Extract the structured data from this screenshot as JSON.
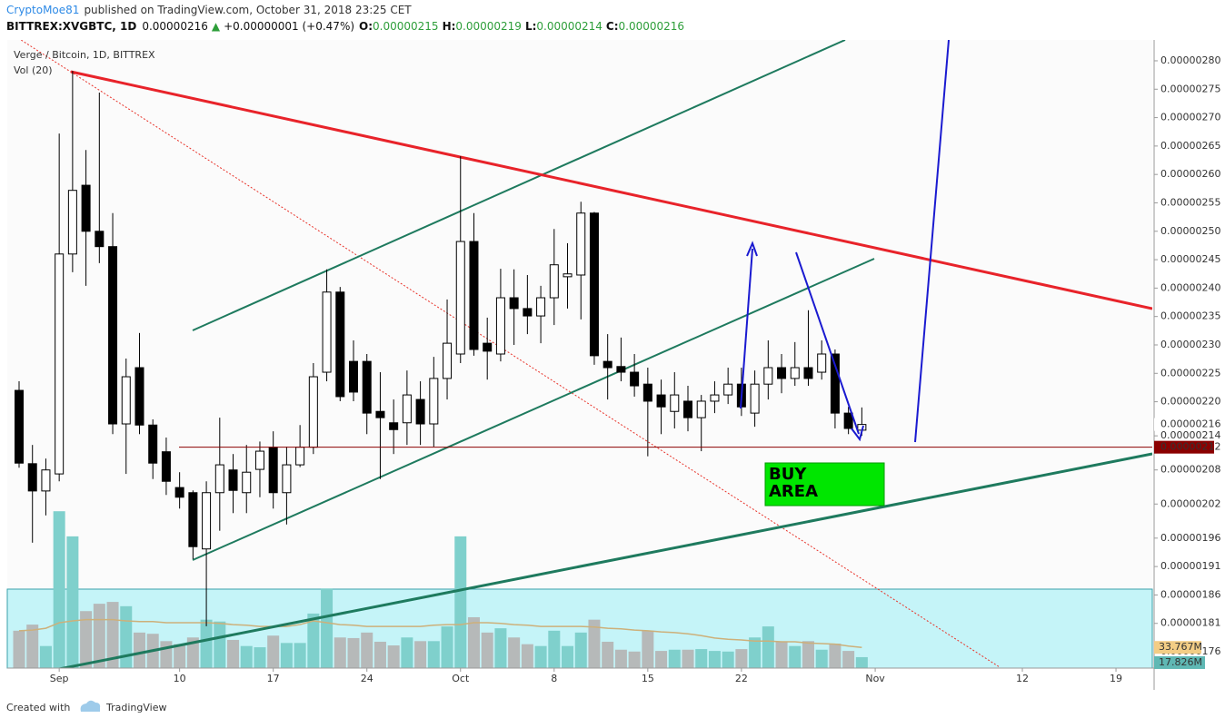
{
  "header": {
    "author": "CryptoMoe81",
    "published": "published on TradingView.com, October 31, 2018 23:25 CET",
    "symbol": "BITTREX:XVGBTC, 1D",
    "last": "0.00000216",
    "arrow": "▲",
    "change": "+0.00000001 (+0.47%)",
    "o_label": "O:",
    "o": "0.00000215",
    "h_label": "H:",
    "h": "0.00000219",
    "l_label": "L:",
    "l": "0.00000214",
    "c_label": "C:",
    "c": "0.00000216"
  },
  "footer": {
    "created": "Created with",
    "brand": "TradingView"
  },
  "chart_data": {
    "type": "candlestick",
    "title": "Verge / Bitcoin, 1D, BITTREX",
    "annotation": "BUY AREA",
    "x": [
      "2018-08-29",
      "2018-08-30",
      "2018-08-31",
      "2018-09-01",
      "2018-09-02",
      "2018-09-03",
      "2018-09-04",
      "2018-09-05",
      "2018-09-06",
      "2018-09-07",
      "2018-09-08",
      "2018-09-09",
      "2018-09-10",
      "2018-09-11",
      "2018-09-12",
      "2018-09-13",
      "2018-09-14",
      "2018-09-15",
      "2018-09-16",
      "2018-09-17",
      "2018-09-18",
      "2018-09-19",
      "2018-09-20",
      "2018-09-21",
      "2018-09-22",
      "2018-09-23",
      "2018-09-24",
      "2018-09-25",
      "2018-09-26",
      "2018-09-27",
      "2018-09-28",
      "2018-09-29",
      "2018-09-30",
      "2018-10-01",
      "2018-10-02",
      "2018-10-03",
      "2018-10-04",
      "2018-10-05",
      "2018-10-06",
      "2018-10-07",
      "2018-10-08",
      "2018-10-09",
      "2018-10-10",
      "2018-10-11",
      "2018-10-12",
      "2018-10-13",
      "2018-10-14",
      "2018-10-15",
      "2018-10-16",
      "2018-10-17",
      "2018-10-18",
      "2018-10-19",
      "2018-10-20",
      "2018-10-21",
      "2018-10-22",
      "2018-10-23",
      "2018-10-24",
      "2018-10-25",
      "2018-10-26",
      "2018-10-27",
      "2018-10-28",
      "2018-10-29",
      "2018-10-30",
      "2018-10-31"
    ],
    "open": [
      2.22e-06,
      2.091e-06,
      2.043e-06,
      2.073e-06,
      2.46e-06,
      2.581e-06,
      2.5e-06,
      2.473e-06,
      2.161e-06,
      2.26e-06,
      2.159e-06,
      2.112e-06,
      2.049e-06,
      2.04e-06,
      1.941e-06,
      2.04e-06,
      2.08e-06,
      2.04e-06,
      2.081e-06,
      2.12e-06,
      2.04e-06,
      2.089e-06,
      2.12e-06,
      2.252e-06,
      2.393e-06,
      2.271e-06,
      2.271e-06,
      2.183e-06,
      2.163e-06,
      2.163e-06,
      2.204e-06,
      2.161e-06,
      2.241e-06,
      2.284e-06,
      2.482e-06,
      2.303e-06,
      2.284e-06,
      2.383e-06,
      2.364e-06,
      2.351e-06,
      2.383e-06,
      2.42e-06,
      2.423e-06,
      2.532e-06,
      2.271e-06,
      2.262e-06,
      2.252e-06,
      2.231e-06,
      2.212e-06,
      2.183e-06,
      2.201e-06,
      2.172e-06,
      2.201e-06,
      2.212e-06,
      2.231e-06,
      2.18e-06,
      2.231e-06,
      2.26e-06,
      2.241e-06,
      2.26e-06,
      2.252e-06,
      2.284e-06,
      2.18e-06,
      2.15e-06
    ],
    "high": [
      2.236e-06,
      2.124e-06,
      2.1e-06,
      2.672e-06,
      2.782e-06,
      2.643e-06,
      2.744e-06,
      2.532e-06,
      2.276e-06,
      2.321e-06,
      2.169e-06,
      2.137e-06,
      2.076e-06,
      2.044e-06,
      2.06e-06,
      2.172e-06,
      2.108e-06,
      2.124e-06,
      2.13e-06,
      2.148e-06,
      2.121e-06,
      2.159e-06,
      2.268e-06,
      2.433e-06,
      2.402e-06,
      2.308e-06,
      2.284e-06,
      2.252e-06,
      2.204e-06,
      2.255e-06,
      2.236e-06,
      2.279e-06,
      2.38e-06,
      2.632e-06,
      2.532e-06,
      2.348e-06,
      2.434e-06,
      2.433e-06,
      2.423e-06,
      2.404e-06,
      2.504e-06,
      2.479e-06,
      2.552e-06,
      2.534e-06,
      2.319e-06,
      2.313e-06,
      2.284e-06,
      2.26e-06,
      2.239e-06,
      2.252e-06,
      2.228e-06,
      2.212e-06,
      2.236e-06,
      2.26e-06,
      2.26e-06,
      2.255e-06,
      2.308e-06,
      2.284e-06,
      2.305e-06,
      2.361e-06,
      2.308e-06,
      2.292e-06,
      2.191e-06,
      2.19e-06
    ],
    "low": [
      2.084e-06,
      1.952e-06,
      2e-06,
      2.06e-06,
      2.428e-06,
      2.404e-06,
      2.444e-06,
      2.143e-06,
      2.073e-06,
      2.143e-06,
      2.064e-06,
      2.036e-06,
      2.012e-06,
      1.923e-06,
      1.805e-06,
      1.973e-06,
      2.004e-06,
      2.004e-06,
      2.032e-06,
      2.012e-06,
      1.984e-06,
      2.085e-06,
      2.108e-06,
      2.236e-06,
      2.201e-06,
      2.201e-06,
      2.143e-06,
      2.064e-06,
      2.108e-06,
      2.124e-06,
      2.124e-06,
      2.121e-06,
      2.204e-06,
      2.268e-06,
      2.281e-06,
      2.239e-06,
      2.271e-06,
      2.3e-06,
      2.319e-06,
      2.303e-06,
      2.335e-06,
      2.364e-06,
      2.345e-06,
      2.265e-06,
      2.204e-06,
      2.236e-06,
      2.209e-06,
      2.104e-06,
      2.143e-06,
      2.153e-06,
      2.148e-06,
      2.113e-06,
      2.18e-06,
      2.196e-06,
      2.175e-06,
      2.156e-06,
      2.204e-06,
      2.215e-06,
      2.228e-06,
      2.228e-06,
      2.239e-06,
      2.153e-06,
      2.143e-06,
      2.14e-06
    ],
    "close": [
      2.092e-06,
      2.043e-06,
      2.08e-06,
      2.46e-06,
      2.572e-06,
      2.5e-06,
      2.473e-06,
      2.161e-06,
      2.244e-06,
      2.159e-06,
      2.092e-06,
      2.06e-06,
      2.032e-06,
      1.945e-06,
      2.04e-06,
      2.089e-06,
      2.044e-06,
      2.076e-06,
      2.113e-06,
      2.04e-06,
      2.089e-06,
      2.12e-06,
      2.244e-06,
      2.393e-06,
      2.209e-06,
      2.217e-06,
      2.18e-06,
      2.172e-06,
      2.151e-06,
      2.212e-06,
      2.161e-06,
      2.241e-06,
      2.303e-06,
      2.482e-06,
      2.292e-06,
      2.289e-06,
      2.383e-06,
      2.364e-06,
      2.351e-06,
      2.383e-06,
      2.441e-06,
      2.425e-06,
      2.532e-06,
      2.281e-06,
      2.26e-06,
      2.252e-06,
      2.228e-06,
      2.201e-06,
      2.191e-06,
      2.212e-06,
      2.172e-06,
      2.201e-06,
      2.212e-06,
      2.231e-06,
      2.191e-06,
      2.231e-06,
      2.26e-06,
      2.241e-06,
      2.26e-06,
      2.241e-06,
      2.284e-06,
      2.18e-06,
      2.153e-06,
      2.16e-06
    ],
    "up_color": "#ffffff",
    "down_color": "#000000",
    "border_color": "#000000",
    "ylim": [
      1.7313e-06,
      2.8367e-06
    ],
    "yticks": [
      {
        "value": 2.8e-06,
        "label": "0.00000280"
      },
      {
        "value": 2.75e-06,
        "label": "0.00000275"
      },
      {
        "value": 2.7e-06,
        "label": "0.00000270"
      },
      {
        "value": 2.65e-06,
        "label": "0.00000265"
      },
      {
        "value": 2.6e-06,
        "label": "0.00000260"
      },
      {
        "value": 2.55e-06,
        "label": "0.00000255"
      },
      {
        "value": 2.5e-06,
        "label": "0.00000250"
      },
      {
        "value": 2.45e-06,
        "label": "0.00000245"
      },
      {
        "value": 2.4e-06,
        "label": "0.00000240"
      },
      {
        "value": 2.35e-06,
        "label": "0.00000235"
      },
      {
        "value": 2.3e-06,
        "label": "0.00000230"
      },
      {
        "value": 2.25e-06,
        "label": "0.00000225"
      },
      {
        "value": 2.2e-06,
        "label": "0.00000220"
      },
      {
        "value": 2.14e-06,
        "label": "0.00000214"
      },
      {
        "value": 2.08e-06,
        "label": "0.00000208"
      },
      {
        "value": 2.02e-06,
        "label": "0.00000202"
      },
      {
        "value": 1.96e-06,
        "label": "0.00000196"
      },
      {
        "value": 1.91e-06,
        "label": "0.00000191"
      },
      {
        "value": 1.86e-06,
        "label": "0.00000186"
      },
      {
        "value": 1.81e-06,
        "label": "0.00000181"
      },
      {
        "value": 1.76e-06,
        "label": "0.00000176"
      }
    ],
    "xticks": [
      {
        "value": "2018-09-01",
        "label": "Sep"
      },
      {
        "value": "2018-09-10",
        "label": "10"
      },
      {
        "value": "2018-09-17",
        "label": "17"
      },
      {
        "value": "2018-09-24",
        "label": "24"
      },
      {
        "value": "2018-10-01",
        "label": "Oct"
      },
      {
        "value": "2018-10-08",
        "label": "8"
      },
      {
        "value": "2018-10-15",
        "label": "15"
      },
      {
        "value": "2018-10-22",
        "label": "22"
      },
      {
        "value": "2018-11-01",
        "label": "Nov"
      },
      {
        "value": "2018-11-12",
        "label": "12"
      },
      {
        "value": "2018-11-19",
        "label": "19"
      }
    ],
    "hline": {
      "value": 2.12e-06,
      "label": "0.00000212",
      "color": "#8b0000"
    },
    "grid": false,
    "volume": {
      "name": "Vol (20)",
      "values": [
        61000000,
        71000000,
        36000000,
        256000000,
        215000000,
        93000000,
        105000000,
        108000000,
        101000000,
        58000000,
        56000000,
        44000000,
        39000000,
        50000000,
        79000000,
        76000000,
        46000000,
        36000000,
        34000000,
        53000000,
        41000000,
        41000000,
        89000000,
        130000000,
        50000000,
        49000000,
        58000000,
        43000000,
        37000000,
        50000000,
        44000000,
        44000000,
        68000000,
        215000000,
        83000000,
        58000000,
        65000000,
        50000000,
        39000000,
        36000000,
        61000000,
        36000000,
        58000000,
        79000000,
        43000000,
        30000000,
        27000000,
        61000000,
        28000000,
        30000000,
        30000000,
        31000000,
        28000000,
        27000000,
        31000000,
        50000000,
        68000000,
        43000000,
        36000000,
        44000000,
        30000000,
        40000000,
        28000000,
        17826000
      ],
      "ma_values": [
        61000000,
        62000000,
        65000000,
        74000000,
        77000000,
        79000000,
        79000000,
        79000000,
        77000000,
        76000000,
        76000000,
        74000000,
        74000000,
        74000000,
        74000000,
        73000000,
        71000000,
        70000000,
        68000000,
        68000000,
        68000000,
        71000000,
        77000000,
        74000000,
        71000000,
        70000000,
        68000000,
        68000000,
        68000000,
        68000000,
        68000000,
        70000000,
        71000000,
        71000000,
        74000000,
        74000000,
        73000000,
        71000000,
        70000000,
        68000000,
        68000000,
        68000000,
        68000000,
        67000000,
        65000000,
        64000000,
        62000000,
        61000000,
        59000000,
        58000000,
        56000000,
        53000000,
        49000000,
        47000000,
        46000000,
        44000000,
        44000000,
        43000000,
        43000000,
        41000000,
        40000000,
        39000000,
        36000000,
        33767000
      ],
      "last_label": "17.826M",
      "ma_label": "33.767M",
      "up_color": "#7fd0cc",
      "down_color": "#b6b9b9",
      "ma_color": "#cdb07a",
      "last_box_color": "#5fb8b4",
      "ma_box_color": "#f3cd85"
    }
  }
}
